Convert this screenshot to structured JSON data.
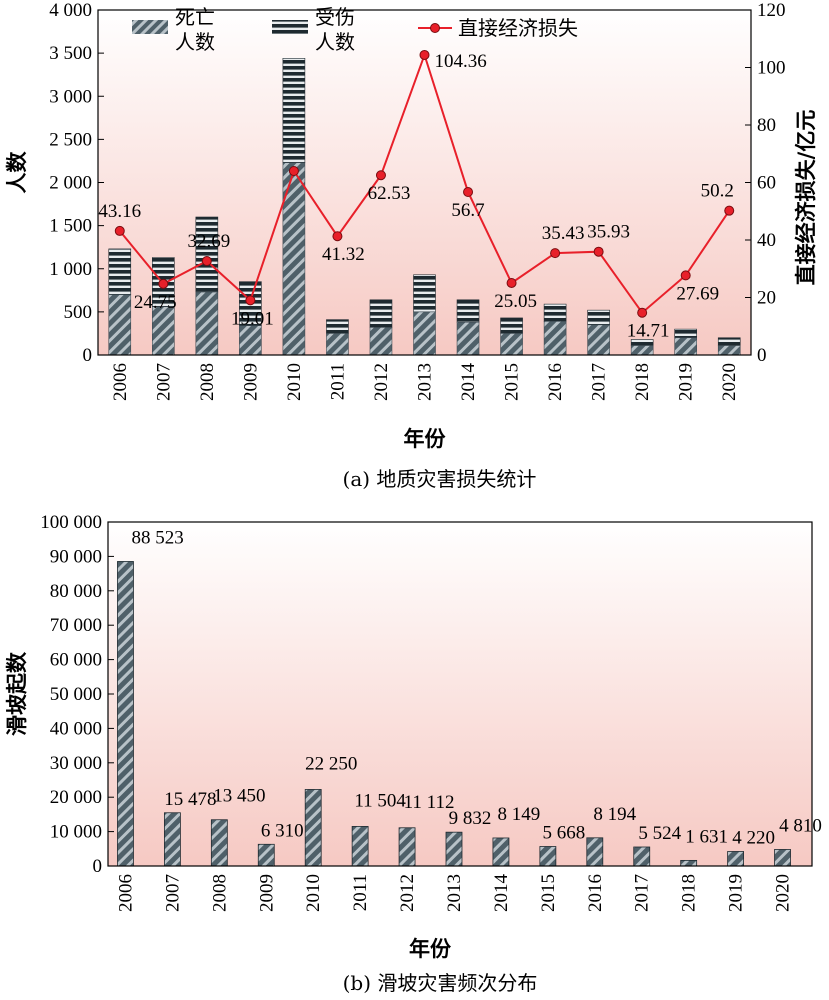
{
  "chart_data": [
    {
      "type": "bar",
      "caption": "(a) 地质灾害损失统计",
      "categories": [
        "2006",
        "2007",
        "2008",
        "2009",
        "2010",
        "2011",
        "2012",
        "2013",
        "2014",
        "2015",
        "2016",
        "2017",
        "2018",
        "2019",
        "2020"
      ],
      "xlabel": "年份",
      "ylabel": "人数",
      "y2label": "直接经济损失/亿元",
      "ylim": [
        0,
        4000
      ],
      "y2lim": [
        0,
        120
      ],
      "yticks": [
        0,
        500,
        1000,
        1500,
        2000,
        2500,
        3000,
        3500,
        4000
      ],
      "ytick_labels": [
        "0",
        "500",
        "1 000",
        "1 500",
        "2 000",
        "2 500",
        "3 000",
        "3 500",
        "4 000"
      ],
      "y2ticks": [
        0,
        20,
        40,
        60,
        80,
        100,
        120
      ],
      "y2tick_labels": [
        "0",
        "20",
        "40",
        "60",
        "80",
        "100",
        "120"
      ],
      "legend_position": "top",
      "series": [
        {
          "name": "死亡人数",
          "type": "bar",
          "stack": "people",
          "pattern": "diagonal",
          "values": [
            700,
            560,
            730,
            340,
            2230,
            250,
            320,
            500,
            380,
            250,
            390,
            350,
            110,
            200,
            110
          ]
        },
        {
          "name": "受伤人数",
          "type": "bar",
          "stack": "people",
          "pattern": "horizontal",
          "values": [
            530,
            570,
            870,
            510,
            1210,
            160,
            320,
            430,
            260,
            180,
            200,
            170,
            70,
            100,
            90
          ]
        },
        {
          "name": "直接经济损失",
          "type": "line",
          "axis": "right",
          "color": "#e8202a",
          "values": [
            43.16,
            24.75,
            32.69,
            19.01,
            64.0,
            41.32,
            62.53,
            104.36,
            56.7,
            25.05,
            35.43,
            35.93,
            14.71,
            27.69,
            50.2
          ],
          "labels": [
            "43.16",
            "24.75",
            "32.69",
            "19.01",
            "",
            "41.32",
            "62.53",
            "104.36",
            "56.7",
            "25.05",
            "35.43",
            "35.93",
            "14.71",
            "27.69",
            "50.2"
          ]
        }
      ],
      "legend_labels": [
        [
          "死亡",
          "人数"
        ],
        [
          "受伤",
          "人数"
        ],
        [
          "直接经济损失"
        ]
      ]
    },
    {
      "type": "bar",
      "caption": "(b) 滑坡灾害频次分布",
      "categories": [
        "2006",
        "2007",
        "2008",
        "2009",
        "2010",
        "2011",
        "2012",
        "2013",
        "2014",
        "2015",
        "2016",
        "2017",
        "2018",
        "2019",
        "2020"
      ],
      "xlabel": "年份",
      "ylabel": "滑坡起数",
      "ylim": [
        0,
        100000
      ],
      "yticks": [
        0,
        10000,
        20000,
        30000,
        40000,
        50000,
        60000,
        70000,
        80000,
        90000,
        100000
      ],
      "ytick_labels": [
        "0",
        "10 000",
        "20 000",
        "30 000",
        "40 000",
        "50 000",
        "60 000",
        "70 000",
        "80 000",
        "90 000",
        "100 000"
      ],
      "values": [
        88523,
        15478,
        13450,
        6310,
        22250,
        11504,
        11112,
        9832,
        8149,
        5668,
        8194,
        5524,
        1631,
        4220,
        4810
      ],
      "labels": [
        "88 523",
        "15 478",
        "13 450",
        "6 310",
        "22 250",
        "11 504",
        "11 112",
        "9 832",
        "8 149",
        "5 668",
        "8 194",
        "5 524",
        "1 631",
        "4 220",
        "4 810"
      ]
    }
  ],
  "colors": {
    "bar_fill": "#5c6e78",
    "line": "#e8202a",
    "bg_top": "#ffffff",
    "bg_bottom": "#f6c9c3"
  }
}
